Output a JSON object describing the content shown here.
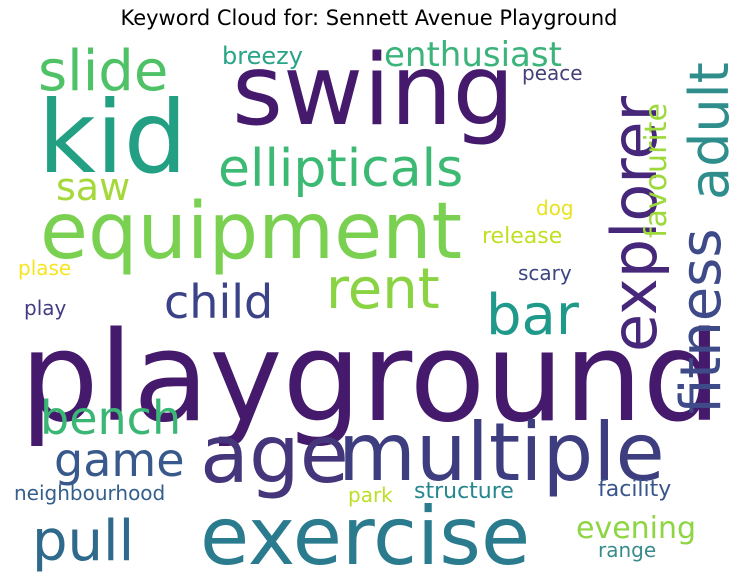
{
  "title": "Keyword Cloud for: Sennett Avenue Playground",
  "words": [
    {
      "text": "playground",
      "color": "#45196b"
    },
    {
      "text": "swing",
      "color": "#45196b"
    },
    {
      "text": "kid",
      "color": "#23a083"
    },
    {
      "text": "equipment",
      "color": "#7ad151"
    },
    {
      "text": "exercise",
      "color": "#2a7b8e"
    },
    {
      "text": "multiple",
      "color": "#3d3d80"
    },
    {
      "text": "age",
      "color": "#45357a"
    },
    {
      "text": "explorer",
      "color": "#46277a"
    },
    {
      "text": "fitness",
      "color": "#3f4a89"
    },
    {
      "text": "adult",
      "color": "#2f8e8c"
    },
    {
      "text": "ellipticals",
      "color": "#3cba74"
    },
    {
      "text": "slide",
      "color": "#4fc268"
    },
    {
      "text": "rent",
      "color": "#8ad444"
    },
    {
      "text": "bar",
      "color": "#1f9a8a"
    },
    {
      "text": "child",
      "color": "#3b4288"
    },
    {
      "text": "pull",
      "color": "#2f6a8d"
    },
    {
      "text": "bench",
      "color": "#3bb775"
    },
    {
      "text": "game",
      "color": "#37598c"
    },
    {
      "text": "enthusiast",
      "color": "#3ab47a"
    },
    {
      "text": "saw",
      "color": "#a5d93b"
    },
    {
      "text": "favourite",
      "color": "#9dd93b"
    },
    {
      "text": "evening",
      "color": "#8ed544"
    },
    {
      "text": "breezy",
      "color": "#29a487"
    },
    {
      "text": "peace",
      "color": "#453f7a"
    },
    {
      "text": "dog",
      "color": "#e8e31e"
    },
    {
      "text": "release",
      "color": "#c2df23"
    },
    {
      "text": "plase",
      "color": "#f6e521"
    },
    {
      "text": "scary",
      "color": "#3b4680"
    },
    {
      "text": "play",
      "color": "#443b84"
    },
    {
      "text": "neighbourhood",
      "color": "#345f8c"
    },
    {
      "text": "park",
      "color": "#bbdf27"
    },
    {
      "text": "structure",
      "color": "#26868e"
    },
    {
      "text": "facility",
      "color": "#39568c"
    },
    {
      "text": "range",
      "color": "#3a8b8c"
    }
  ]
}
